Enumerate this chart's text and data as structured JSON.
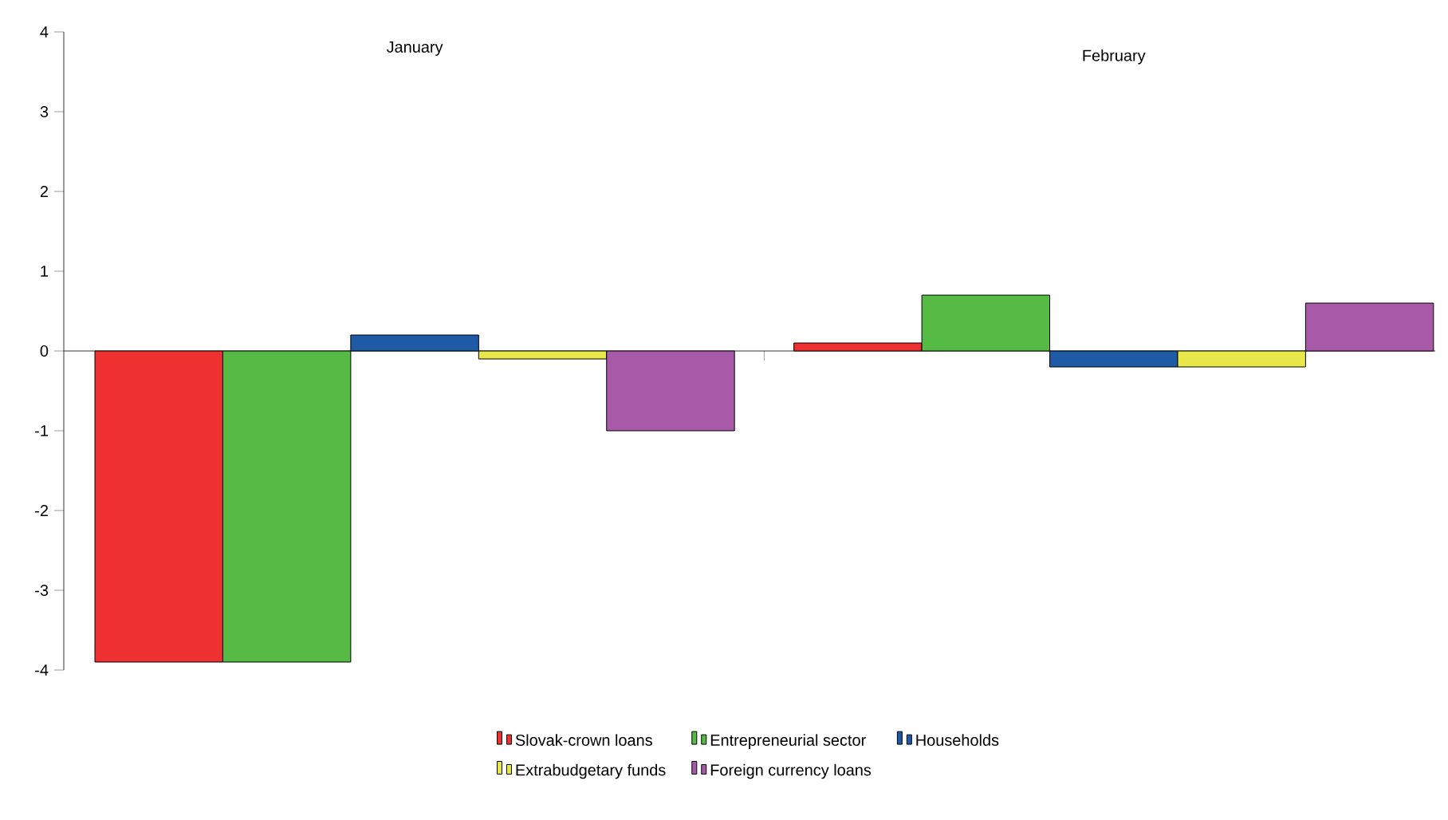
{
  "chart_data": {
    "type": "bar",
    "categories": [
      "January",
      "February"
    ],
    "series": [
      {
        "name": "Slovak-crown loans",
        "color": "#ee3030",
        "values": [
          -3.9,
          0.1
        ]
      },
      {
        "name": "Entrepreneurial sector",
        "color": "#55bb44",
        "values": [
          -3.9,
          0.7
        ]
      },
      {
        "name": "Households",
        "color": "#1f5aa6",
        "values": [
          0.2,
          -0.2
        ]
      },
      {
        "name": "Extrabudgetary funds",
        "color": "#e8e84a",
        "values": [
          -0.1,
          -0.2
        ]
      },
      {
        "name": "Foreign currency loans",
        "color": "#a85aa8",
        "values": [
          -1.0,
          0.6
        ]
      }
    ],
    "ylim": [
      -4,
      4
    ],
    "yticks": [
      -4,
      -3,
      -2,
      -1,
      0,
      1,
      2,
      3,
      4
    ],
    "legend": "bottom"
  }
}
